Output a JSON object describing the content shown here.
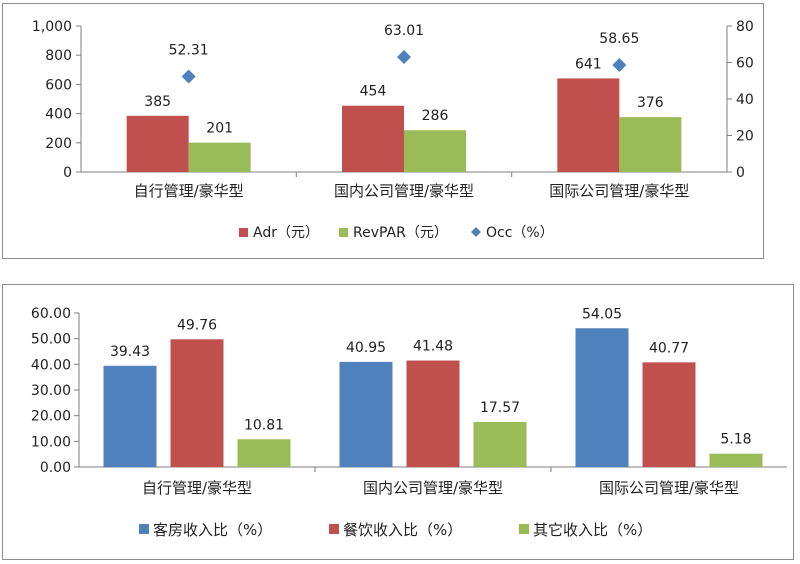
{
  "colors": {
    "red": "#c0504d",
    "green": "#9bbb59",
    "blue": "#4f81bd",
    "diamond": "#4f81bd",
    "axis": "#7f7f7f"
  },
  "chart_data": [
    {
      "type": "bar",
      "categories": [
        "自行管理/豪华型",
        "国内公司管理/豪华型",
        "国际公司管理/豪华型"
      ],
      "series": [
        {
          "name": "Adr（元）",
          "axis": "left",
          "type": "bar",
          "color": "#c0504d",
          "values": [
            385,
            454,
            641
          ]
        },
        {
          "name": "RevPAR（元）",
          "axis": "left",
          "type": "bar",
          "color": "#9bbb59",
          "values": [
            201,
            286,
            376
          ]
        },
        {
          "name": "Occ（%）",
          "axis": "right",
          "type": "scatter",
          "marker": "diamond",
          "color": "#4f81bd",
          "values": [
            52.31,
            63.01,
            58.65
          ]
        }
      ],
      "value_labels": [
        [
          "385",
          "454",
          "641"
        ],
        [
          "201",
          "286",
          "376"
        ],
        [
          "52.31",
          "63.01",
          "58.65"
        ]
      ],
      "ylim_left": [
        0,
        1000
      ],
      "yticks_left": [
        "0",
        "200",
        "400",
        "600",
        "800",
        "1,000"
      ],
      "ylim_right": [
        0,
        80
      ],
      "yticks_right": [
        "0",
        "20",
        "40",
        "60",
        "80"
      ],
      "grid": false,
      "legend_position": "bottom"
    },
    {
      "type": "bar",
      "categories": [
        "自行管理/豪华型",
        "国内公司管理/豪华型",
        "国际公司管理/豪华型"
      ],
      "series": [
        {
          "name": "客房收入比（%）",
          "color": "#4f81bd",
          "values": [
            39.43,
            40.95,
            54.05
          ]
        },
        {
          "name": "餐饮收入比（%）",
          "color": "#c0504d",
          "values": [
            49.76,
            41.48,
            40.77
          ]
        },
        {
          "name": "其它收入比（%）",
          "color": "#9bbb59",
          "values": [
            10.81,
            17.57,
            5.18
          ]
        }
      ],
      "value_labels": [
        [
          "39.43",
          "40.95",
          "54.05"
        ],
        [
          "49.76",
          "41.48",
          "40.77"
        ],
        [
          "10.81",
          "17.57",
          "5.18"
        ]
      ],
      "ylim": [
        0,
        60
      ],
      "yticks": [
        "0.00",
        "10.00",
        "20.00",
        "30.00",
        "40.00",
        "50.00",
        "60.00"
      ],
      "grid": false,
      "legend_position": "bottom"
    }
  ]
}
